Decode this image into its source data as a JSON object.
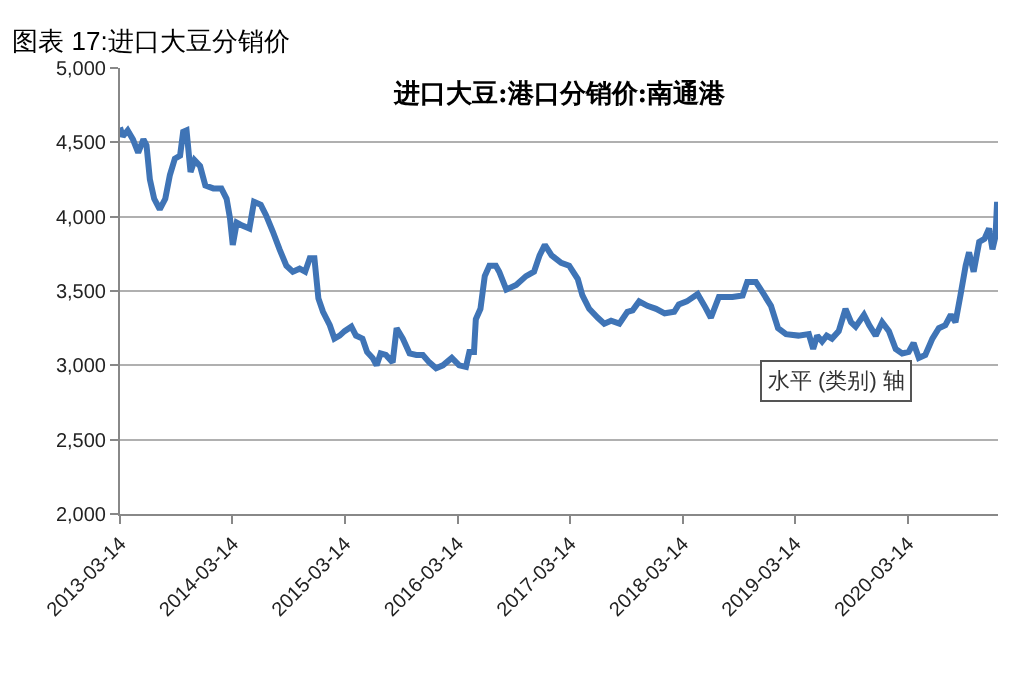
{
  "chart_data": {
    "type": "line",
    "title": "图表 17:进口大豆分销价",
    "subtitle": "进口大豆:港口分销价:南通港",
    "annotations": [
      "水平 (类别) 轴"
    ],
    "x": [
      "2013-03-14",
      "2013-03-23",
      "2013-04-08",
      "2013-04-25",
      "2013-05-12",
      "2013-05-29",
      "2013-06-08",
      "2013-06-19",
      "2013-07-03",
      "2013-07-21",
      "2013-08-08",
      "2013-08-23",
      "2013-09-08",
      "2013-09-25",
      "2013-10-05",
      "2013-10-16",
      "2013-10-29",
      "2013-11-11",
      "2013-11-29",
      "2013-12-16",
      "2014-01-11",
      "2014-02-06",
      "2014-02-23",
      "2014-03-06",
      "2014-03-15",
      "2014-03-28",
      "2014-04-15",
      "2014-05-08",
      "2014-05-23",
      "2014-06-14",
      "2014-07-01",
      "2014-07-23",
      "2014-08-14",
      "2014-09-05",
      "2014-09-26",
      "2014-10-18",
      "2014-11-05",
      "2014-11-20",
      "2014-12-05",
      "2014-12-18",
      "2015-01-02",
      "2015-01-24",
      "2015-02-08",
      "2015-02-25",
      "2015-03-13",
      "2015-04-04",
      "2015-04-19",
      "2015-05-10",
      "2015-05-25",
      "2015-06-12",
      "2015-06-25",
      "2015-07-08",
      "2015-07-25",
      "2015-08-16",
      "2015-08-29",
      "2015-09-18",
      "2015-10-10",
      "2015-11-01",
      "2015-11-22",
      "2015-12-13",
      "2016-01-04",
      "2016-01-26",
      "2016-02-24",
      "2016-03-19",
      "2016-04-10",
      "2016-04-21",
      "2016-05-06",
      "2016-05-12",
      "2016-05-27",
      "2016-06-10",
      "2016-06-25",
      "2016-07-16",
      "2016-07-27",
      "2016-08-19",
      "2016-09-20",
      "2016-10-22",
      "2016-11-17",
      "2016-12-05",
      "2016-12-22",
      "2017-01-13",
      "2017-02-13",
      "2017-03-11",
      "2017-04-08",
      "2017-04-23",
      "2017-05-15",
      "2017-06-12",
      "2017-07-03",
      "2017-07-25",
      "2017-08-21",
      "2017-09-16",
      "2017-10-03",
      "2017-10-24",
      "2017-11-20",
      "2017-12-18",
      "2018-01-15",
      "2018-02-15",
      "2018-03-02",
      "2018-03-28",
      "2018-05-02",
      "2018-05-27",
      "2018-06-14",
      "2018-07-10",
      "2018-08-23",
      "2018-09-25",
      "2018-10-10",
      "2018-11-07",
      "2018-11-29",
      "2018-12-26",
      "2019-01-18",
      "2019-02-13",
      "2019-03-25",
      "2019-04-28",
      "2019-05-12",
      "2019-05-25",
      "2019-06-10",
      "2019-06-25",
      "2019-07-12",
      "2019-08-03",
      "2019-08-25",
      "2019-09-12",
      "2019-09-27",
      "2019-10-24",
      "2019-11-10",
      "2019-12-01",
      "2019-12-22",
      "2020-01-13",
      "2020-02-04",
      "2020-02-25",
      "2020-03-17",
      "2020-04-02",
      "2020-04-19",
      "2020-05-10",
      "2020-06-02",
      "2020-06-23",
      "2020-07-14",
      "2020-08-01",
      "2020-08-16",
      "2020-09-01",
      "2020-09-18",
      "2020-09-29",
      "2020-10-14",
      "2020-11-01",
      "2020-11-18",
      "2020-12-03",
      "2020-12-14",
      "2020-12-24",
      "2020-12-29"
    ],
    "series": [
      {
        "color": "#3f74b6",
        "values": [
          4600,
          4540,
          4580,
          4520,
          4430,
          4520,
          4480,
          4250,
          4120,
          4050,
          4120,
          4280,
          4390,
          4410,
          4570,
          4580,
          4300,
          4380,
          4340,
          4210,
          4190,
          4190,
          4120,
          3990,
          3810,
          3960,
          3940,
          3920,
          4100,
          4080,
          4010,
          3900,
          3780,
          3670,
          3630,
          3650,
          3630,
          3720,
          3720,
          3450,
          3360,
          3270,
          3180,
          3200,
          3230,
          3260,
          3200,
          3180,
          3090,
          3050,
          3000,
          3080,
          3070,
          3020,
          3250,
          3180,
          3080,
          3070,
          3070,
          3020,
          2980,
          3000,
          3050,
          3000,
          2990,
          3090,
          3090,
          3310,
          3380,
          3600,
          3670,
          3670,
          3630,
          3510,
          3540,
          3600,
          3630,
          3740,
          3810,
          3740,
          3690,
          3670,
          3580,
          3470,
          3380,
          3320,
          3280,
          3300,
          3280,
          3360,
          3370,
          3430,
          3400,
          3380,
          3350,
          3360,
          3410,
          3430,
          3480,
          3390,
          3320,
          3460,
          3460,
          3470,
          3560,
          3560,
          3490,
          3400,
          3250,
          3210,
          3200,
          3210,
          3110,
          3200,
          3160,
          3200,
          3180,
          3230,
          3380,
          3290,
          3260,
          3340,
          3270,
          3200,
          3290,
          3230,
          3110,
          3080,
          3090,
          3150,
          3050,
          3070,
          3180,
          3250,
          3270,
          3340,
          3290,
          3470,
          3670,
          3760,
          3630,
          3830,
          3850,
          3920,
          3780,
          3870,
          4100
        ]
      }
    ],
    "xlim": [
      "2013-03-14",
      "2021-01-01"
    ],
    "xticks": [
      "2013-03-14",
      "2014-03-14",
      "2015-03-14",
      "2016-03-14",
      "2017-03-14",
      "2018-03-14",
      "2019-03-14",
      "2020-03-14"
    ],
    "ylim": [
      2000,
      5000
    ],
    "yticks": [
      {
        "value": 2000,
        "label": "2,000"
      },
      {
        "value": 2500,
        "label": "2,500"
      },
      {
        "value": 3000,
        "label": "3,000"
      },
      {
        "value": 3500,
        "label": "3,500"
      },
      {
        "value": 4000,
        "label": "4,000"
      },
      {
        "value": 4500,
        "label": "4,500"
      },
      {
        "value": 5000,
        "label": "5,000"
      }
    ],
    "grid": "y",
    "marker": "none",
    "line_style": "solid"
  }
}
